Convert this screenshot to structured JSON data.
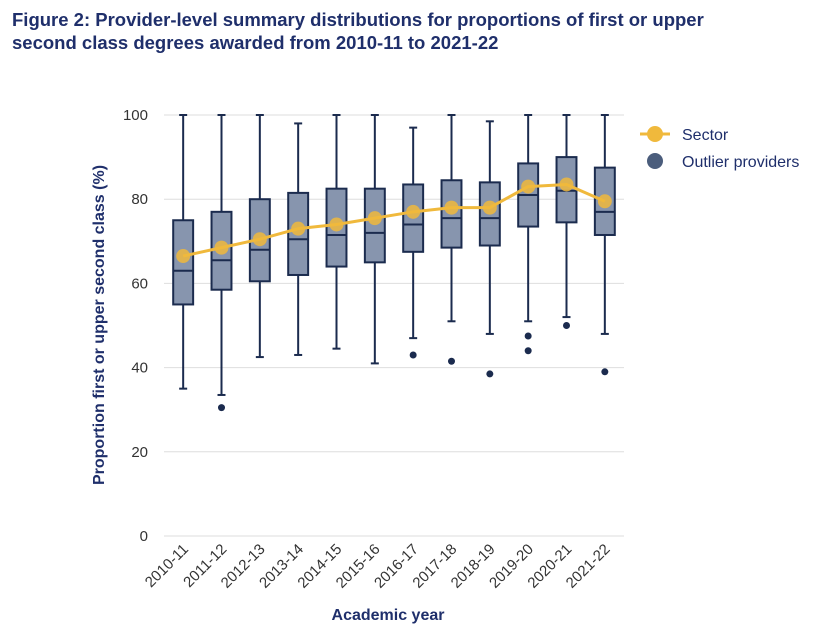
{
  "chart_data": {
    "type": "box",
    "title_line1": "Figure 2: Provider-level summary distributions for proportions of first or upper",
    "title_line2": "second class degrees awarded from 2010-11 to 2021-22",
    "xlabel": "Academic year",
    "ylabel": "Proportion first or upper second class (%)",
    "ylim": [
      0,
      100
    ],
    "yticks": [
      "0",
      "20",
      "40",
      "60",
      "80",
      "100"
    ],
    "categories": [
      "2010-11",
      "2011-12",
      "2012-13",
      "2013-14",
      "2014-15",
      "2015-16",
      "2016-17",
      "2017-18",
      "2018-19",
      "2019-20",
      "2020-21",
      "2021-22"
    ],
    "boxes": [
      {
        "min": 35,
        "q1": 55,
        "median": 63,
        "q3": 75,
        "max": 100
      },
      {
        "min": 33.5,
        "q1": 58.5,
        "median": 65.5,
        "q3": 77,
        "max": 100
      },
      {
        "min": 42.5,
        "q1": 60.5,
        "median": 68,
        "q3": 80,
        "max": 100
      },
      {
        "min": 43,
        "q1": 62,
        "median": 70.5,
        "q3": 81.5,
        "max": 98
      },
      {
        "min": 44.5,
        "q1": 64,
        "median": 71.5,
        "q3": 82.5,
        "max": 100
      },
      {
        "min": 41,
        "q1": 65,
        "median": 72,
        "q3": 82.5,
        "max": 100
      },
      {
        "min": 47,
        "q1": 67.5,
        "median": 74,
        "q3": 83.5,
        "max": 97
      },
      {
        "min": 51,
        "q1": 68.5,
        "median": 75.5,
        "q3": 84.5,
        "max": 100
      },
      {
        "min": 48,
        "q1": 69,
        "median": 75.5,
        "q3": 84,
        "max": 98.5
      },
      {
        "min": 51,
        "q1": 73.5,
        "median": 81,
        "q3": 88.5,
        "max": 100
      },
      {
        "min": 52,
        "q1": 74.5,
        "median": 82,
        "q3": 90,
        "max": 100
      },
      {
        "min": 48,
        "q1": 71.5,
        "median": 77,
        "q3": 87.5,
        "max": 100
      }
    ],
    "outliers": [
      [],
      [
        30.5
      ],
      [],
      [],
      [],
      [],
      [
        43
      ],
      [
        41.5
      ],
      [
        38.5
      ],
      [
        47.5,
        44
      ],
      [
        50
      ],
      [
        39
      ]
    ],
    "sector": [
      66.5,
      68.5,
      70.5,
      73,
      74,
      75.5,
      77,
      78,
      78,
      83,
      83.5,
      79.5
    ],
    "legend": {
      "sector": "Sector",
      "outliers": "Outlier providers"
    },
    "colors": {
      "box_fill": "#8795ae",
      "box_stroke": "#1b2b4e",
      "sector": "#f0b93c",
      "outlier": "#1b2b4e",
      "legend_outlier": "#4b5d7c",
      "title": "#1f2f6b",
      "grid": "#dedede"
    }
  }
}
